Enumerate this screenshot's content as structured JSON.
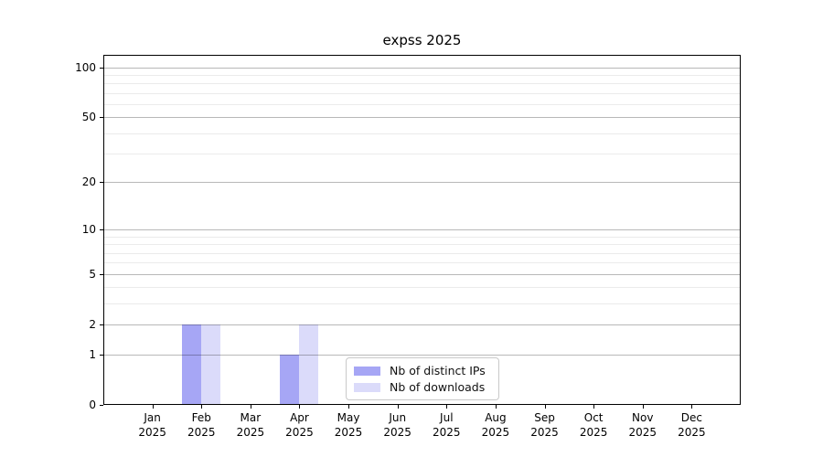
{
  "chart_data": {
    "type": "bar",
    "title": "expss 2025",
    "categories": [
      "Jan",
      "Feb",
      "Mar",
      "Apr",
      "May",
      "Jun",
      "Jul",
      "Aug",
      "Sep",
      "Oct",
      "Nov",
      "Dec"
    ],
    "category_year": "2025",
    "series": [
      {
        "name": "Nb of distinct IPs",
        "color": "#a6a6f5",
        "values": [
          0,
          2,
          0,
          1,
          0,
          0,
          0,
          0,
          0,
          0,
          0,
          0
        ]
      },
      {
        "name": "Nb of downloads",
        "color": "#dbdbfa",
        "values": [
          0,
          2,
          0,
          2,
          0,
          0,
          0,
          0,
          0,
          0,
          0,
          0
        ]
      }
    ],
    "xlabel": "",
    "ylabel": "",
    "y_scale": "log1p",
    "y_major_ticks": [
      0,
      1,
      2,
      5,
      10,
      20,
      50,
      100
    ],
    "y_minor_gridlines": [
      3,
      4,
      6,
      7,
      8,
      9,
      30,
      40,
      60,
      70,
      80,
      90
    ],
    "ylim": [
      0,
      120
    ],
    "grid": "horizontal",
    "legend_position": "lower center inside"
  },
  "colors": {
    "bar_distinct_ips": "#a6a6f5",
    "bar_downloads": "#dbdbfa",
    "grid_major": "#b8b8b8",
    "grid_minor": "#ebebeb",
    "spine": "#000000",
    "legend_border": "#c9c9c9",
    "background": "#ffffff"
  }
}
